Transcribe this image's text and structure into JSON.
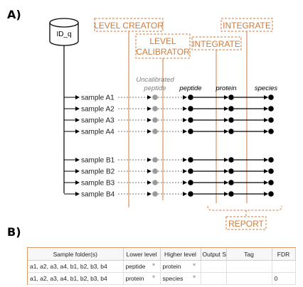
{
  "panel_a_label": "A)",
  "panel_b_label": "B)",
  "database_label": "ID_q",
  "boxes": {
    "level_creator": "LEVEL CREATOR",
    "level_calibrator_line1": "LEVEL",
    "level_calibrator_line2": "CALIBRATOR",
    "integrate_1": "INTEGRATE",
    "integrate_2": "INTEGRATE",
    "report": "REPORT"
  },
  "column_headers": {
    "uncalibrated_line1": "Uncalibrated",
    "uncalibrated_line2": "peptide",
    "peptide": "peptide",
    "protein": "protein",
    "species": "species"
  },
  "samples": [
    "sample A1",
    "sample A2",
    "sample A3",
    "sample A4",
    "sample B1",
    "sample B2",
    "sample B3",
    "sample B4"
  ],
  "colors": {
    "accent_orange": "#d07a3a",
    "uncalibrated_gray": "#9a9a9a",
    "node_black": "#000000"
  },
  "table": {
    "headers": [
      "Sample folder(s)",
      "Lower level",
      "Higher level",
      "Output S",
      "Tag",
      "FDR"
    ],
    "rows": [
      [
        "a1, a2, a3, a4, b1, b2, b3, b4",
        "peptide",
        "protein",
        "",
        "",
        ""
      ],
      [
        "a1, a2, a3, a4, b1, b2, b3, b4",
        "protein",
        "species",
        "",
        "",
        "0"
      ]
    ]
  }
}
